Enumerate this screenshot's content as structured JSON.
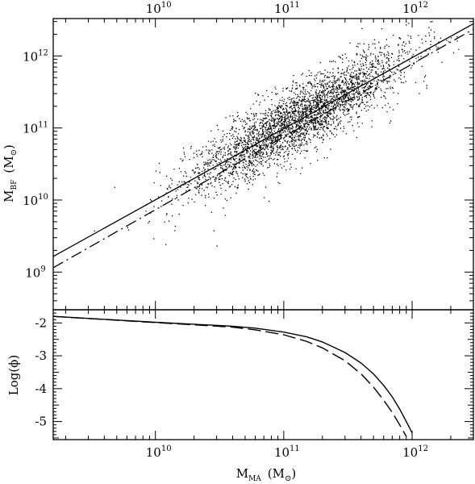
{
  "chart_data": [
    {
      "type": "scatter",
      "panel": "top",
      "xlabel": "",
      "ylabel": "M",
      "ylabel_sub": "BF",
      "ylabel_unit": "(M",
      "ylabel_unit_close": ")",
      "x_scale": "log",
      "y_scale": "log",
      "xlim": [
        1600000000.0,
        3000000000000.0
      ],
      "ylim": [
        300000000.0,
        3300000000000.0
      ],
      "x_ticks": [
        {
          "value": 10000000000.0,
          "base": "10",
          "exp": "10"
        },
        {
          "value": 100000000000.0,
          "base": "10",
          "exp": "11"
        },
        {
          "value": 1000000000000.0,
          "base": "10",
          "exp": "12"
        }
      ],
      "y_ticks": [
        {
          "value": 1000000000.0,
          "base": "10",
          "exp": "9"
        },
        {
          "value": 10000000000.0,
          "base": "10",
          "exp": "10"
        },
        {
          "value": 100000000000.0,
          "base": "10",
          "exp": "11"
        },
        {
          "value": 1000000000000.0,
          "base": "10",
          "exp": "12"
        }
      ],
      "top_axis_labels": true,
      "series": [
        {
          "style": "points",
          "count": 7000,
          "description_only": false
        },
        {
          "style": "solid",
          "x": [
            1600000000.0,
            3000000000000.0
          ],
          "y": [
            1650000000.0,
            2800000000000.0
          ]
        },
        {
          "style": "long-dash",
          "x": [
            1600000000.0,
            3000000000000.0
          ],
          "y": [
            1150000000.0,
            2350000000000.0
          ]
        }
      ],
      "grid": false
    },
    {
      "type": "line",
      "panel": "bottom",
      "xlabel": "M",
      "xlabel_sub": "MA",
      "xlabel_unit": "(M",
      "xlabel_unit_close": ")",
      "ylabel": "Log(ϕ)",
      "x_scale": "log",
      "xlim": [
        1600000000.0,
        3000000000000.0
      ],
      "ylim": [
        -5.55,
        -1.6
      ],
      "y_ticks": [
        "-2",
        "-3",
        "-4",
        "-5"
      ],
      "series": [
        {
          "style": "solid",
          "x": [
            1600000000.0,
            10000000000.0,
            20000000000.0,
            40000000000.0,
            60000000000.0,
            100000000000.0,
            150000000000.0,
            200000000000.0,
            300000000000.0,
            400000000000.0,
            500000000000.0,
            600000000000.0,
            700000000000.0,
            800000000000.0,
            900000000000.0,
            1000000000000.0
          ],
          "y": [
            -1.8,
            -1.98,
            -2.04,
            -2.1,
            -2.16,
            -2.28,
            -2.42,
            -2.58,
            -2.9,
            -3.22,
            -3.55,
            -3.9,
            -4.25,
            -4.62,
            -5.0,
            -5.35
          ]
        },
        {
          "style": "long-dash",
          "x": [
            1600000000.0,
            10000000000.0,
            20000000000.0,
            40000000000.0,
            60000000000.0,
            100000000000.0,
            150000000000.0,
            200000000000.0,
            300000000000.0,
            400000000000.0,
            500000000000.0,
            600000000000.0,
            700000000000.0,
            800000000000.0,
            900000000000.0
          ],
          "y": [
            -1.8,
            -1.99,
            -2.06,
            -2.13,
            -2.21,
            -2.36,
            -2.56,
            -2.76,
            -3.15,
            -3.55,
            -3.95,
            -4.35,
            -4.72,
            -5.1,
            -5.45
          ]
        }
      ],
      "grid": false
    }
  ]
}
